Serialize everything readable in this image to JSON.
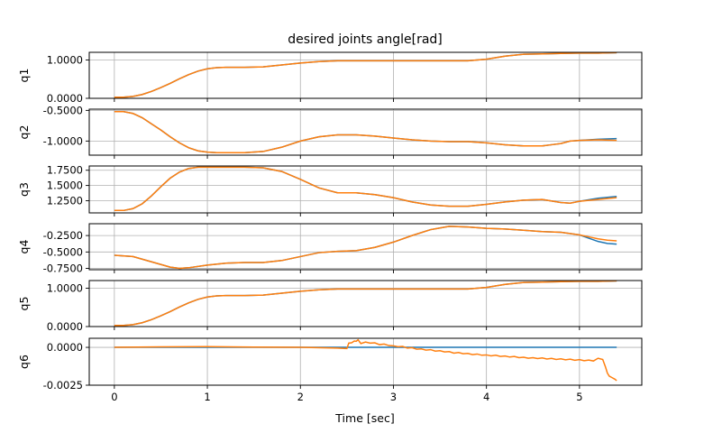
{
  "chart_data": {
    "type": "line",
    "title": "desired joints angle[rad]",
    "xlabel": "Time [sec]",
    "xlim": [
      -0.27,
      5.67
    ],
    "xticks": [
      0,
      1,
      2,
      3,
      4,
      5
    ],
    "xtick_labels": [
      "0",
      "1",
      "2",
      "3",
      "4",
      "5"
    ],
    "grid": true,
    "series_colors": [
      "#1f77b4",
      "#ff7f0e"
    ],
    "subplots": [
      {
        "ylabel": "q1",
        "ylim": [
          0.0,
          1.2
        ],
        "yticks": [
          0.0,
          1.0
        ],
        "ytick_labels": [
          "0.0000",
          "1.0000"
        ],
        "series": [
          {
            "color": "#1f77b4",
            "x": [
              0,
              0.1,
              0.2,
              0.3,
              0.4,
              0.5,
              0.6,
              0.7,
              0.8,
              0.9,
              1.0,
              1.1,
              1.2,
              1.4,
              1.6,
              1.8,
              2.0,
              2.2,
              2.4,
              2.6,
              2.8,
              3.0,
              3.2,
              3.4,
              3.6,
              3.8,
              4.0,
              4.2,
              4.4,
              4.6,
              4.8,
              5.0,
              5.2,
              5.4
            ],
            "y": [
              0.03,
              0.03,
              0.05,
              0.1,
              0.18,
              0.28,
              0.39,
              0.51,
              0.62,
              0.71,
              0.77,
              0.8,
              0.81,
              0.81,
              0.82,
              0.87,
              0.92,
              0.96,
              0.98,
              0.98,
              0.98,
              0.98,
              0.98,
              0.98,
              0.98,
              0.98,
              1.02,
              1.1,
              1.15,
              1.16,
              1.17,
              1.18,
              1.18,
              1.19
            ]
          },
          {
            "color": "#ff7f0e",
            "x": [
              0,
              0.1,
              0.2,
              0.3,
              0.4,
              0.5,
              0.6,
              0.7,
              0.8,
              0.9,
              1.0,
              1.1,
              1.2,
              1.4,
              1.6,
              1.8,
              2.0,
              2.2,
              2.4,
              2.6,
              2.8,
              3.0,
              3.2,
              3.4,
              3.6,
              3.8,
              4.0,
              4.2,
              4.4,
              4.6,
              4.8,
              5.0,
              5.2,
              5.4
            ],
            "y": [
              0.03,
              0.03,
              0.05,
              0.1,
              0.18,
              0.28,
              0.39,
              0.51,
              0.62,
              0.71,
              0.77,
              0.8,
              0.81,
              0.81,
              0.82,
              0.87,
              0.92,
              0.96,
              0.98,
              0.98,
              0.98,
              0.98,
              0.98,
              0.98,
              0.98,
              0.98,
              1.02,
              1.1,
              1.15,
              1.16,
              1.17,
              1.18,
              1.18,
              1.19
            ]
          }
        ]
      },
      {
        "ylabel": "q2",
        "ylim": [
          -1.23,
          -0.48
        ],
        "yticks": [
          -1.0,
          -0.5
        ],
        "ytick_labels": [
          "-1.0000",
          "-0.5000"
        ],
        "series": [
          {
            "color": "#1f77b4",
            "x": [
              0,
              0.1,
              0.2,
              0.3,
              0.4,
              0.5,
              0.6,
              0.7,
              0.8,
              0.9,
              1.0,
              1.1,
              1.2,
              1.4,
              1.6,
              1.8,
              2.0,
              2.2,
              2.4,
              2.6,
              2.8,
              3.0,
              3.2,
              3.4,
              3.6,
              3.8,
              4.0,
              4.2,
              4.4,
              4.6,
              4.7,
              4.8,
              4.9,
              5.0,
              5.2,
              5.4
            ],
            "y": [
              -0.52,
              -0.52,
              -0.55,
              -0.62,
              -0.72,
              -0.82,
              -0.93,
              -1.03,
              -1.11,
              -1.16,
              -1.18,
              -1.19,
              -1.19,
              -1.19,
              -1.17,
              -1.1,
              -1.0,
              -0.93,
              -0.9,
              -0.9,
              -0.92,
              -0.95,
              -0.98,
              -1.0,
              -1.01,
              -1.01,
              -1.03,
              -1.06,
              -1.08,
              -1.08,
              -1.06,
              -1.04,
              -1.0,
              -0.99,
              -0.97,
              -0.96
            ]
          },
          {
            "color": "#ff7f0e",
            "x": [
              0,
              0.1,
              0.2,
              0.3,
              0.4,
              0.5,
              0.6,
              0.7,
              0.8,
              0.9,
              1.0,
              1.1,
              1.2,
              1.4,
              1.6,
              1.8,
              2.0,
              2.2,
              2.4,
              2.6,
              2.8,
              3.0,
              3.2,
              3.4,
              3.6,
              3.8,
              4.0,
              4.2,
              4.4,
              4.6,
              4.7,
              4.8,
              4.9,
              5.0,
              5.2,
              5.4
            ],
            "y": [
              -0.52,
              -0.52,
              -0.55,
              -0.62,
              -0.72,
              -0.82,
              -0.93,
              -1.03,
              -1.11,
              -1.16,
              -1.18,
              -1.19,
              -1.19,
              -1.19,
              -1.17,
              -1.1,
              -1.0,
              -0.93,
              -0.9,
              -0.9,
              -0.92,
              -0.95,
              -0.98,
              -1.0,
              -1.01,
              -1.01,
              -1.03,
              -1.06,
              -1.08,
              -1.08,
              -1.06,
              -1.04,
              -1.0,
              -0.99,
              -0.98,
              -0.99
            ]
          }
        ]
      },
      {
        "ylabel": "q3",
        "ylim": [
          1.05,
          1.82
        ],
        "yticks": [
          1.25,
          1.5,
          1.75
        ],
        "ytick_labels": [
          "1.2500",
          "1.5000",
          "1.7500"
        ],
        "series": [
          {
            "color": "#1f77b4",
            "x": [
              0,
              0.1,
              0.2,
              0.3,
              0.4,
              0.5,
              0.6,
              0.7,
              0.8,
              0.9,
              1.0,
              1.2,
              1.4,
              1.6,
              1.8,
              2.0,
              2.2,
              2.4,
              2.6,
              2.8,
              3.0,
              3.2,
              3.4,
              3.6,
              3.8,
              4.0,
              4.2,
              4.4,
              4.6,
              4.8,
              4.9,
              5.0,
              5.2,
              5.4
            ],
            "y": [
              1.09,
              1.09,
              1.12,
              1.2,
              1.33,
              1.48,
              1.62,
              1.72,
              1.78,
              1.8,
              1.8,
              1.8,
              1.8,
              1.79,
              1.73,
              1.6,
              1.46,
              1.38,
              1.38,
              1.35,
              1.3,
              1.23,
              1.18,
              1.16,
              1.16,
              1.19,
              1.23,
              1.26,
              1.27,
              1.22,
              1.21,
              1.24,
              1.29,
              1.32
            ]
          },
          {
            "color": "#ff7f0e",
            "x": [
              0,
              0.1,
              0.2,
              0.3,
              0.4,
              0.5,
              0.6,
              0.7,
              0.8,
              0.9,
              1.0,
              1.2,
              1.4,
              1.6,
              1.8,
              2.0,
              2.2,
              2.4,
              2.6,
              2.8,
              3.0,
              3.2,
              3.4,
              3.6,
              3.8,
              4.0,
              4.2,
              4.4,
              4.6,
              4.8,
              4.9,
              5.0,
              5.2,
              5.4
            ],
            "y": [
              1.09,
              1.09,
              1.12,
              1.2,
              1.33,
              1.48,
              1.62,
              1.72,
              1.78,
              1.8,
              1.8,
              1.8,
              1.8,
              1.79,
              1.73,
              1.6,
              1.46,
              1.38,
              1.38,
              1.35,
              1.3,
              1.23,
              1.18,
              1.16,
              1.16,
              1.19,
              1.23,
              1.26,
              1.27,
              1.22,
              1.21,
              1.24,
              1.27,
              1.3
            ]
          }
        ]
      },
      {
        "ylabel": "q4",
        "ylim": [
          -0.77,
          -0.07
        ],
        "yticks": [
          -0.75,
          -0.5,
          -0.25
        ],
        "ytick_labels": [
          "-0.7500",
          "-0.5000",
          "-0.2500"
        ],
        "series": [
          {
            "color": "#1f77b4",
            "x": [
              0,
              0.2,
              0.4,
              0.6,
              0.7,
              0.8,
              1.0,
              1.2,
              1.4,
              1.6,
              1.8,
              2.0,
              2.2,
              2.4,
              2.6,
              2.8,
              3.0,
              3.2,
              3.4,
              3.6,
              3.8,
              4.0,
              4.2,
              4.4,
              4.6,
              4.8,
              5.0,
              5.1,
              5.2,
              5.3,
              5.4
            ],
            "y": [
              -0.55,
              -0.57,
              -0.65,
              -0.73,
              -0.75,
              -0.74,
              -0.7,
              -0.67,
              -0.66,
              -0.66,
              -0.63,
              -0.57,
              -0.51,
              -0.49,
              -0.48,
              -0.43,
              -0.35,
              -0.25,
              -0.16,
              -0.11,
              -0.12,
              -0.14,
              -0.15,
              -0.17,
              -0.19,
              -0.2,
              -0.24,
              -0.29,
              -0.34,
              -0.37,
              -0.38
            ]
          },
          {
            "color": "#ff7f0e",
            "x": [
              0,
              0.2,
              0.4,
              0.6,
              0.7,
              0.8,
              1.0,
              1.2,
              1.4,
              1.6,
              1.8,
              2.0,
              2.2,
              2.4,
              2.6,
              2.8,
              3.0,
              3.2,
              3.4,
              3.6,
              3.8,
              4.0,
              4.2,
              4.4,
              4.6,
              4.8,
              5.0,
              5.1,
              5.2,
              5.3,
              5.4
            ],
            "y": [
              -0.55,
              -0.57,
              -0.65,
              -0.73,
              -0.75,
              -0.74,
              -0.7,
              -0.67,
              -0.66,
              -0.66,
              -0.63,
              -0.57,
              -0.51,
              -0.49,
              -0.48,
              -0.43,
              -0.35,
              -0.25,
              -0.16,
              -0.11,
              -0.12,
              -0.14,
              -0.15,
              -0.17,
              -0.19,
              -0.2,
              -0.24,
              -0.27,
              -0.3,
              -0.32,
              -0.33
            ]
          }
        ]
      },
      {
        "ylabel": "q5",
        "ylim": [
          0.0,
          1.2
        ],
        "yticks": [
          0.0,
          1.0
        ],
        "ytick_labels": [
          "0.0000",
          "1.0000"
        ],
        "series": [
          {
            "color": "#1f77b4",
            "x": [
              0,
              0.1,
              0.2,
              0.3,
              0.4,
              0.5,
              0.6,
              0.7,
              0.8,
              0.9,
              1.0,
              1.1,
              1.2,
              1.4,
              1.6,
              1.8,
              2.0,
              2.2,
              2.4,
              2.6,
              2.8,
              3.0,
              3.2,
              3.4,
              3.6,
              3.8,
              4.0,
              4.2,
              4.4,
              4.6,
              4.8,
              5.0,
              5.2,
              5.4
            ],
            "y": [
              0.03,
              0.03,
              0.05,
              0.1,
              0.18,
              0.28,
              0.39,
              0.51,
              0.62,
              0.71,
              0.77,
              0.8,
              0.81,
              0.81,
              0.82,
              0.87,
              0.92,
              0.96,
              0.98,
              0.98,
              0.98,
              0.98,
              0.98,
              0.98,
              0.98,
              0.98,
              1.02,
              1.1,
              1.15,
              1.16,
              1.17,
              1.18,
              1.18,
              1.19
            ]
          },
          {
            "color": "#ff7f0e",
            "x": [
              0,
              0.1,
              0.2,
              0.3,
              0.4,
              0.5,
              0.6,
              0.7,
              0.8,
              0.9,
              1.0,
              1.1,
              1.2,
              1.4,
              1.6,
              1.8,
              2.0,
              2.2,
              2.4,
              2.6,
              2.8,
              3.0,
              3.2,
              3.4,
              3.6,
              3.8,
              4.0,
              4.2,
              4.4,
              4.6,
              4.8,
              5.0,
              5.2,
              5.4
            ],
            "y": [
              0.03,
              0.03,
              0.05,
              0.1,
              0.18,
              0.28,
              0.39,
              0.51,
              0.62,
              0.71,
              0.77,
              0.8,
              0.81,
              0.81,
              0.82,
              0.87,
              0.92,
              0.96,
              0.98,
              0.98,
              0.98,
              0.98,
              0.98,
              0.98,
              0.98,
              0.98,
              1.02,
              1.1,
              1.15,
              1.16,
              1.17,
              1.18,
              1.18,
              1.19
            ]
          }
        ]
      },
      {
        "ylabel": "q6",
        "ylim": [
          -0.0025,
          0.0006
        ],
        "yticks": [
          -0.0025,
          0.0
        ],
        "ytick_labels": [
          "-0.0025",
          "0.0000"
        ],
        "series": [
          {
            "color": "#1f77b4",
            "x": [
              0,
              5.4
            ],
            "y": [
              0.0,
              0.0
            ]
          },
          {
            "color": "#ff7f0e",
            "x": [
              0,
              0.5,
              1.0,
              1.5,
              2.0,
              2.4,
              2.5,
              2.52,
              2.55,
              2.58,
              2.6,
              2.62,
              2.65,
              2.7,
              2.75,
              2.8,
              2.85,
              2.9,
              2.95,
              3.0,
              3.05,
              3.1,
              3.15,
              3.2,
              3.25,
              3.3,
              3.35,
              3.4,
              3.45,
              3.5,
              3.55,
              3.6,
              3.65,
              3.7,
              3.75,
              3.8,
              3.85,
              3.9,
              3.95,
              4.0,
              4.05,
              4.1,
              4.15,
              4.2,
              4.25,
              4.3,
              4.35,
              4.4,
              4.45,
              4.5,
              4.55,
              4.6,
              4.65,
              4.7,
              4.75,
              4.8,
              4.85,
              4.9,
              4.95,
              5.0,
              5.05,
              5.1,
              5.15,
              5.2,
              5.25,
              5.28,
              5.3,
              5.32,
              5.35,
              5.38,
              5.4
            ],
            "y": [
              0.0,
              3e-05,
              5e-05,
              2e-05,
              0.0,
              -5e-05,
              -8e-05,
              0.00028,
              0.0003,
              0.00042,
              0.0004,
              0.0005,
              0.00025,
              0.00035,
              0.00028,
              0.0003,
              0.00018,
              0.00022,
              0.00012,
              0.0001,
              4e-05,
              6e-05,
              -5e-05,
              -2e-05,
              -0.00012,
              -0.0001,
              -0.00018,
              -0.00015,
              -0.00025,
              -0.00022,
              -0.0003,
              -0.00028,
              -0.00038,
              -0.00034,
              -0.00042,
              -0.0004,
              -0.00048,
              -0.00044,
              -0.00052,
              -0.0005,
              -0.00056,
              -0.00052,
              -0.0006,
              -0.00057,
              -0.00064,
              -0.0006,
              -0.00068,
              -0.00065,
              -0.00072,
              -0.00068,
              -0.00074,
              -0.0007,
              -0.00077,
              -0.00073,
              -0.0008,
              -0.00076,
              -0.00082,
              -0.00078,
              -0.00085,
              -0.00081,
              -0.00088,
              -0.00084,
              -0.0009,
              -0.00072,
              -0.0008,
              -0.0013,
              -0.0017,
              -0.0019,
              -0.002,
              -0.0021,
              -0.0022
            ]
          }
        ]
      }
    ]
  }
}
